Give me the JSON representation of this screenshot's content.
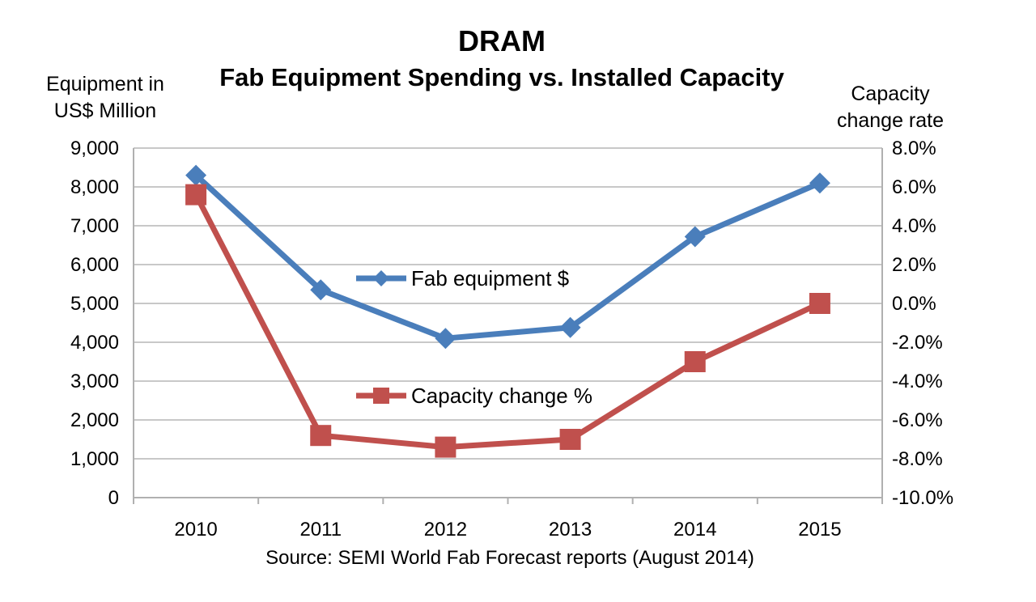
{
  "chart_data": {
    "type": "line",
    "title": "DRAM",
    "subtitle": "Fab Equipment Spending vs. Installed Capacity",
    "ylabel_left": "Equipment in US$ Million",
    "ylabel_right": "Capacity change rate",
    "source": "Source: SEMI World Fab Forecast reports (August 2014)",
    "categories": [
      "2010",
      "2011",
      "2012",
      "2013",
      "2014",
      "2015"
    ],
    "y_left": {
      "range": [
        0,
        9000
      ],
      "ticks": [
        0,
        1000,
        2000,
        3000,
        4000,
        5000,
        6000,
        7000,
        8000,
        9000
      ],
      "tick_labels": [
        "0",
        "1,000",
        "2,000",
        "3,000",
        "4,000",
        "5,000",
        "6,000",
        "7,000",
        "8,000",
        "9,000"
      ]
    },
    "y_right": {
      "range": [
        -10.0,
        8.0
      ],
      "ticks": [
        -10,
        -8,
        -6,
        -4,
        -2,
        0,
        2,
        4,
        6,
        8
      ],
      "tick_labels": [
        "-10.0%",
        "-8.0%",
        "-6.0%",
        "-4.0%",
        "-2.0%",
        "0.0%",
        "2.0%",
        "4.0%",
        "6.0%",
        "8.0%"
      ]
    },
    "series": [
      {
        "name": "Fab equipment $",
        "axis": "left",
        "marker": "diamond",
        "color": "#4a7ebb",
        "values": [
          8300,
          5350,
          4100,
          4380,
          6720,
          8100
        ]
      },
      {
        "name": "Capacity change %",
        "axis": "right",
        "marker": "square",
        "color": "#c0504d",
        "values": [
          5.6,
          -6.8,
          -7.4,
          -7.0,
          -3.0,
          0.0
        ]
      }
    ],
    "grid": true,
    "legend_placement": "inside-center"
  }
}
